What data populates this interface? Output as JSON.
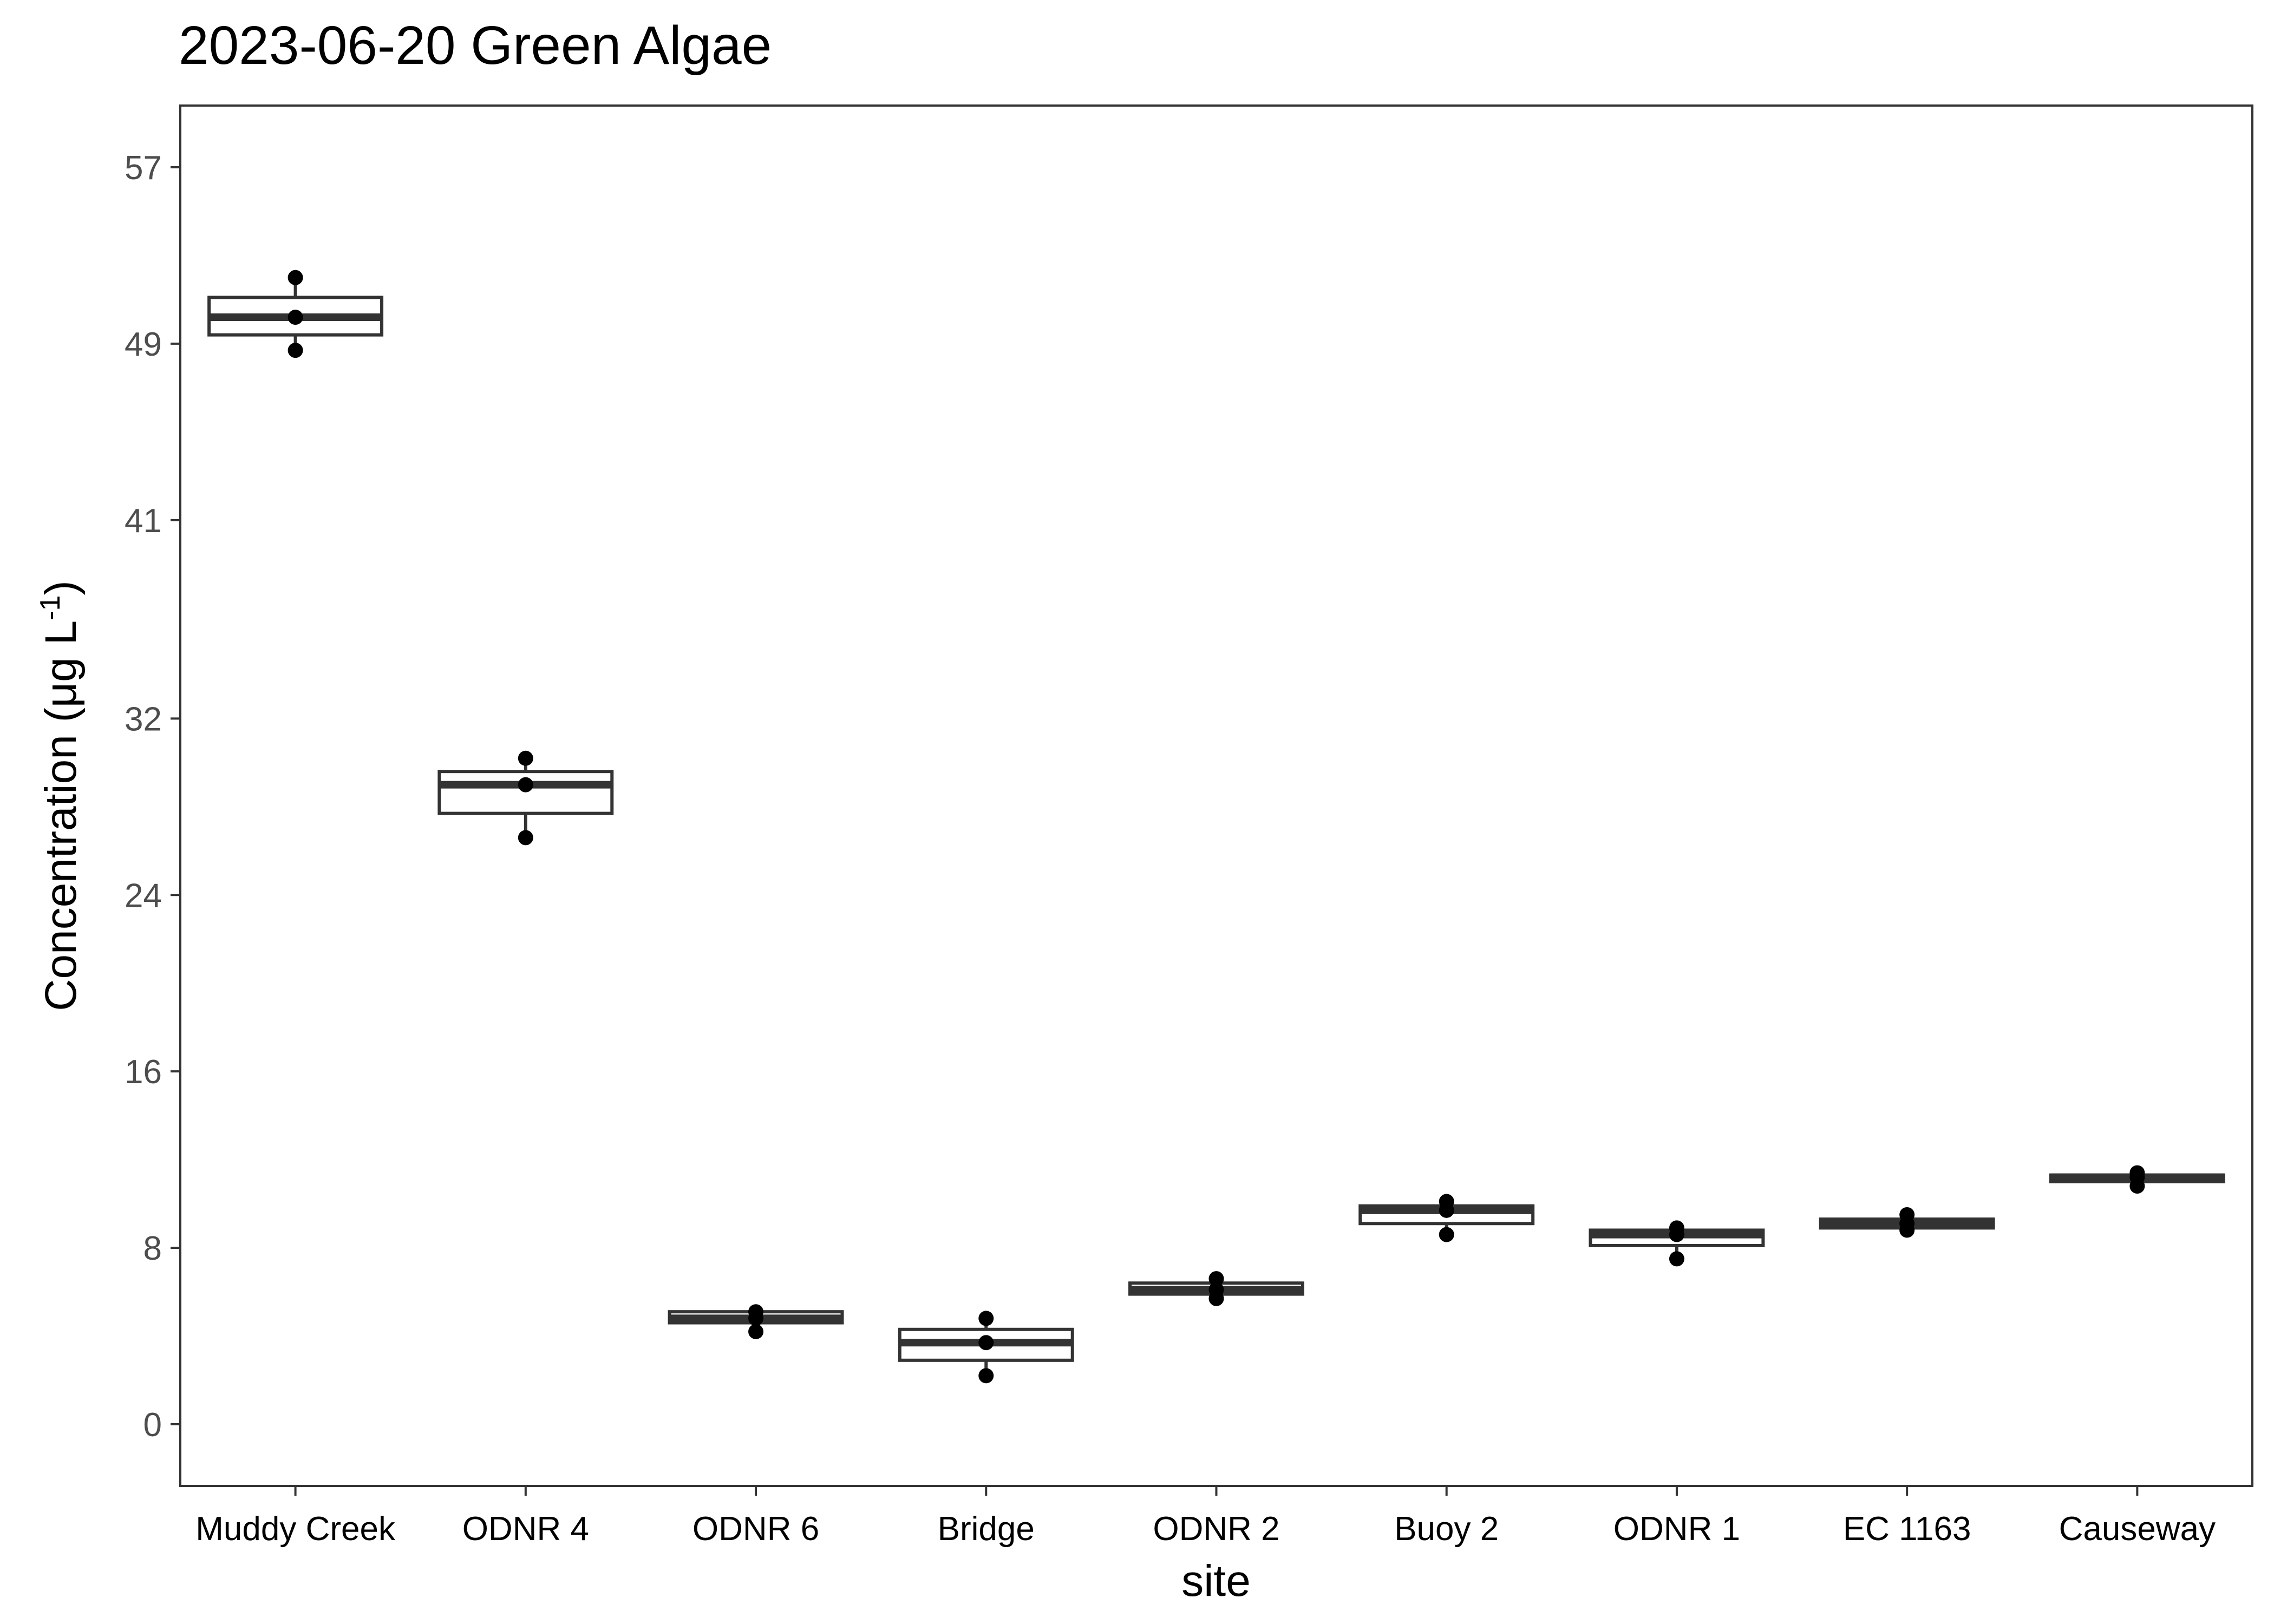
{
  "chart_data": {
    "type": "boxplot",
    "title": "2023-06-20 Green Algae",
    "xlabel": "site",
    "ylabel": "Concentration (μg L",
    "ylabel_superscript": "-1",
    "ylabel_suffix": ")",
    "ylim": [
      -2.8,
      59.8
    ],
    "yticks": [
      0,
      8,
      16,
      24,
      32,
      41,
      49,
      57
    ],
    "grid": false,
    "categories": [
      "Muddy Creek",
      "ODNR 4",
      "ODNR 6",
      "Bridge",
      "ODNR 2",
      "Buoy 2",
      "ODNR 1",
      "EC 1163",
      "Causeway"
    ],
    "boxes": [
      {
        "site": "Muddy Creek",
        "min": 48.7,
        "q1": 49.4,
        "median": 50.2,
        "q3": 51.1,
        "max": 52.0
      },
      {
        "site": "ODNR 4",
        "min": 26.6,
        "q1": 27.7,
        "median": 29.0,
        "q3": 29.6,
        "max": 30.2
      },
      {
        "site": "ODNR 6",
        "min": 4.2,
        "q1": 4.6,
        "median": 4.8,
        "q3": 5.1,
        "max": 5.1
      },
      {
        "site": "Bridge",
        "min": 2.2,
        "q1": 2.9,
        "median": 3.7,
        "q3": 4.3,
        "max": 4.8
      },
      {
        "site": "ODNR 2",
        "min": 5.7,
        "q1": 5.9,
        "median": 6.1,
        "q3": 6.4,
        "max": 6.6
      },
      {
        "site": "Buoy 2",
        "min": 8.6,
        "q1": 9.1,
        "median": 9.7,
        "q3": 9.9,
        "max": 10.1
      },
      {
        "site": "ODNR 1",
        "min": 7.5,
        "q1": 8.1,
        "median": 8.6,
        "q3": 8.8,
        "max": 8.9
      },
      {
        "site": "EC 1163",
        "min": 8.8,
        "q1": 8.9,
        "median": 9.1,
        "q3": 9.3,
        "max": 9.5
      },
      {
        "site": "Causeway",
        "min": 10.8,
        "q1": 11.0,
        "median": 11.2,
        "q3": 11.3,
        "max": 11.4
      }
    ],
    "points": [
      {
        "site": "Muddy Creek",
        "values": [
          48.7,
          50.2,
          52.0
        ]
      },
      {
        "site": "ODNR 4",
        "values": [
          26.6,
          29.0,
          30.2
        ]
      },
      {
        "site": "ODNR 6",
        "values": [
          4.2,
          4.8,
          5.1
        ]
      },
      {
        "site": "Bridge",
        "values": [
          2.2,
          3.7,
          4.8
        ]
      },
      {
        "site": "ODNR 2",
        "values": [
          5.7,
          6.1,
          6.6
        ]
      },
      {
        "site": "Buoy 2",
        "values": [
          8.6,
          9.7,
          10.1
        ]
      },
      {
        "site": "ODNR 1",
        "values": [
          7.5,
          8.6,
          8.9
        ]
      },
      {
        "site": "EC 1163",
        "values": [
          8.8,
          9.1,
          9.5
        ]
      },
      {
        "site": "Causeway",
        "values": [
          10.8,
          11.2,
          11.4
        ]
      }
    ]
  }
}
